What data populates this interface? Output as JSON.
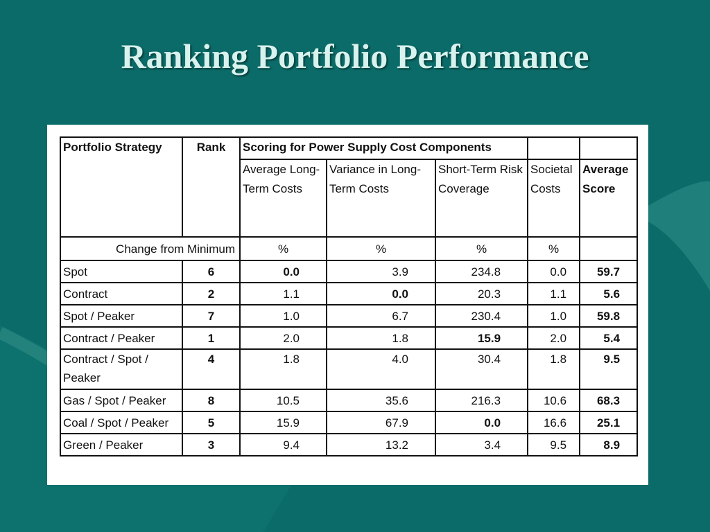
{
  "slide": {
    "title": "Ranking Portfolio Performance"
  },
  "table": {
    "headers": {
      "portfolio_strategy": "Portfolio Strategy",
      "rank": "Rank",
      "group": "Scoring for Power Supply Cost Components",
      "avg_long_term": "Average Long-Term Costs",
      "variance": "Variance in Long-Term Costs",
      "short_term": "Short-Term Risk Coverage",
      "societal": "Societal Costs",
      "average_score": "Average Score"
    },
    "units": {
      "label": "Change from Minimum",
      "avg_long_term": "%",
      "variance": "%",
      "short_term": "%",
      "societal": "%"
    },
    "rows": [
      {
        "strategy": "Spot",
        "rank": "6",
        "avg_long_term": "0.0",
        "variance": "3.9",
        "short_term": "234.8",
        "societal": "0.0",
        "average_score": "59.7"
      },
      {
        "strategy": "Contract",
        "rank": "2",
        "avg_long_term": "1.1",
        "variance": "0.0",
        "short_term": "20.3",
        "societal": "1.1",
        "average_score": "5.6"
      },
      {
        "strategy": "Spot / Peaker",
        "rank": "7",
        "avg_long_term": "1.0",
        "variance": "6.7",
        "short_term": "230.4",
        "societal": "1.0",
        "average_score": "59.8"
      },
      {
        "strategy": "Contract / Peaker",
        "rank": "1",
        "avg_long_term": "2.0",
        "variance": "1.8",
        "short_term": "15.9",
        "societal": "2.0",
        "average_score": "5.4"
      },
      {
        "strategy": "Contract / Spot / Peaker",
        "rank": "4",
        "avg_long_term": "1.8",
        "variance": "4.0",
        "short_term": "30.4",
        "societal": "1.8",
        "average_score": "9.5"
      },
      {
        "strategy": "Gas / Spot / Peaker",
        "rank": "8",
        "avg_long_term": "10.5",
        "variance": "35.6",
        "short_term": "216.3",
        "societal": "10.6",
        "average_score": "68.3"
      },
      {
        "strategy": "Coal / Spot / Peaker",
        "rank": "5",
        "avg_long_term": "15.9",
        "variance": "67.9",
        "short_term": "0.0",
        "societal": "16.6",
        "average_score": "25.1"
      },
      {
        "strategy": "Green / Peaker",
        "rank": "3",
        "avg_long_term": "9.4",
        "variance": "13.2",
        "short_term": "3.4",
        "societal": "9.5",
        "average_score": "8.9"
      }
    ]
  },
  "colors": {
    "background": "#0b6b68",
    "title": "#d8f2ee",
    "panel": "#ffffff"
  }
}
